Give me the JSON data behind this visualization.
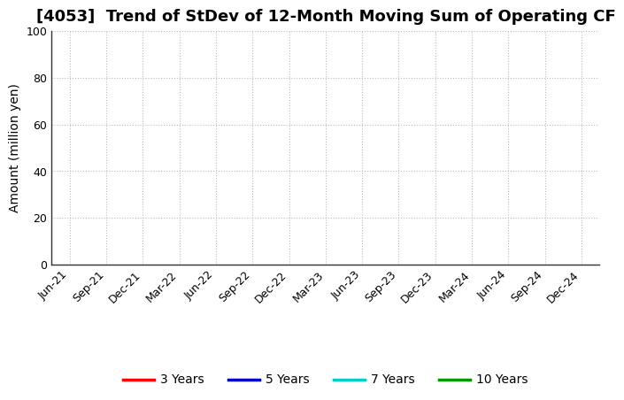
{
  "title": "[4053]  Trend of StDev of 12-Month Moving Sum of Operating CF",
  "ylabel": "Amount (million yen)",
  "ylim": [
    0,
    100
  ],
  "yticks": [
    0,
    20,
    40,
    60,
    80,
    100
  ],
  "x_labels": [
    "Jun-21",
    "Sep-21",
    "Dec-21",
    "Mar-22",
    "Jun-22",
    "Sep-22",
    "Dec-22",
    "Mar-23",
    "Jun-23",
    "Sep-23",
    "Dec-23",
    "Mar-24",
    "Jun-24",
    "Sep-24",
    "Dec-24"
  ],
  "background_color": "#ffffff",
  "grid_color": "#bbbbbb",
  "legend_entries": [
    {
      "label": "3 Years",
      "color": "#ff0000"
    },
    {
      "label": "5 Years",
      "color": "#0000cc"
    },
    {
      "label": "7 Years",
      "color": "#00cccc"
    },
    {
      "label": "10 Years",
      "color": "#009900"
    }
  ],
  "title_fontsize": 13,
  "axis_label_fontsize": 10,
  "tick_fontsize": 9,
  "legend_fontsize": 10
}
